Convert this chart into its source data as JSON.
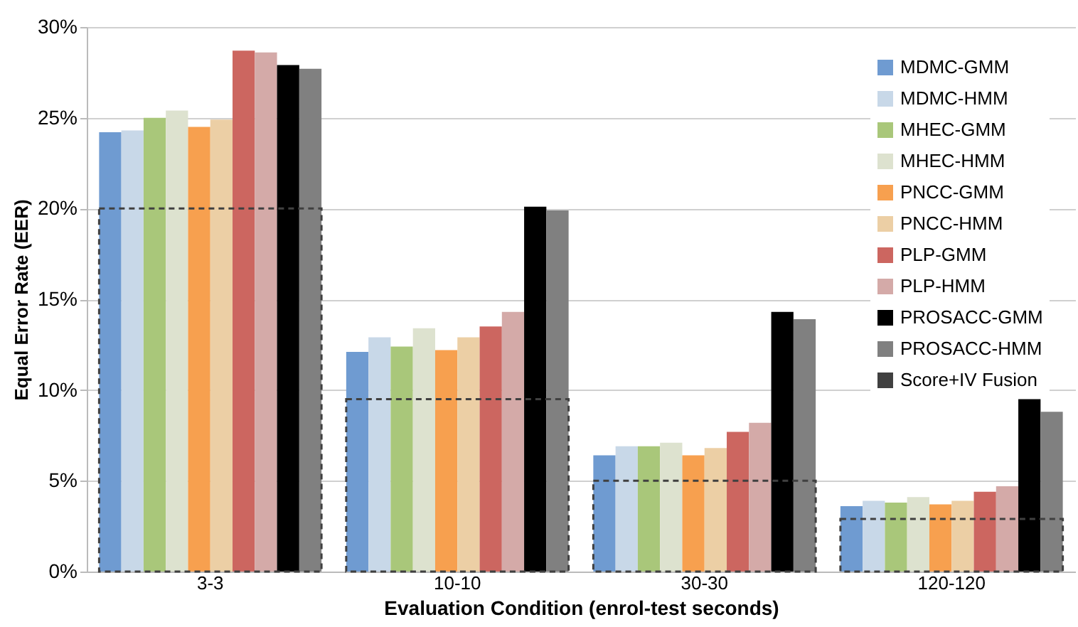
{
  "chart_data": {
    "type": "bar",
    "xlabel": "Evaluation Condition (enrol-test seconds)",
    "ylabel": "Equal Error Rate (EER)",
    "categories": [
      "3-3",
      "10-10",
      "30-30",
      "120-120"
    ],
    "series": [
      {
        "name": "MDMC-GMM",
        "color": "#6f9bd1",
        "values": [
          24.2,
          12.1,
          6.4,
          3.6
        ]
      },
      {
        "name": "MDMC-HMM",
        "color": "#c8d8e8",
        "values": [
          24.3,
          12.9,
          6.9,
          3.9
        ]
      },
      {
        "name": "MHEC-GMM",
        "color": "#a9c77a",
        "values": [
          25.0,
          12.4,
          6.9,
          3.8
        ]
      },
      {
        "name": "MHEC-HMM",
        "color": "#dde2cf",
        "values": [
          25.4,
          13.4,
          7.1,
          4.1
        ]
      },
      {
        "name": "PNCC-GMM",
        "color": "#f7a04f",
        "values": [
          24.5,
          12.2,
          6.4,
          3.7
        ]
      },
      {
        "name": "PNCC-HMM",
        "color": "#eccfa5",
        "values": [
          24.9,
          12.9,
          6.8,
          3.9
        ]
      },
      {
        "name": "PLP-GMM",
        "color": "#cc6660",
        "values": [
          28.7,
          13.5,
          7.7,
          4.4
        ]
      },
      {
        "name": "PLP-HMM",
        "color": "#d4aaa8",
        "values": [
          28.6,
          14.3,
          8.2,
          4.7
        ]
      },
      {
        "name": "PROSACC-GMM",
        "color": "#000000",
        "values": [
          27.9,
          20.1,
          14.3,
          9.5
        ]
      },
      {
        "name": "PROSACC-HMM",
        "color": "#808080",
        "values": [
          27.7,
          19.9,
          13.9,
          8.8
        ]
      },
      {
        "name": "Score+IV Fusion",
        "color": "#404040",
        "line_style": "dashed",
        "values": [
          20.0,
          9.5,
          5.0,
          2.9
        ]
      }
    ],
    "ylim": [
      0,
      30
    ],
    "yticks": [
      {
        "value": 0,
        "label": "0%"
      },
      {
        "value": 5,
        "label": "5%"
      },
      {
        "value": 10,
        "label": "10%"
      },
      {
        "value": 15,
        "label": "15%"
      },
      {
        "value": 20,
        "label": "20%"
      },
      {
        "value": 25,
        "label": "25%"
      },
      {
        "value": 30,
        "label": "30%"
      }
    ],
    "grid": "y",
    "legend": "top right"
  }
}
